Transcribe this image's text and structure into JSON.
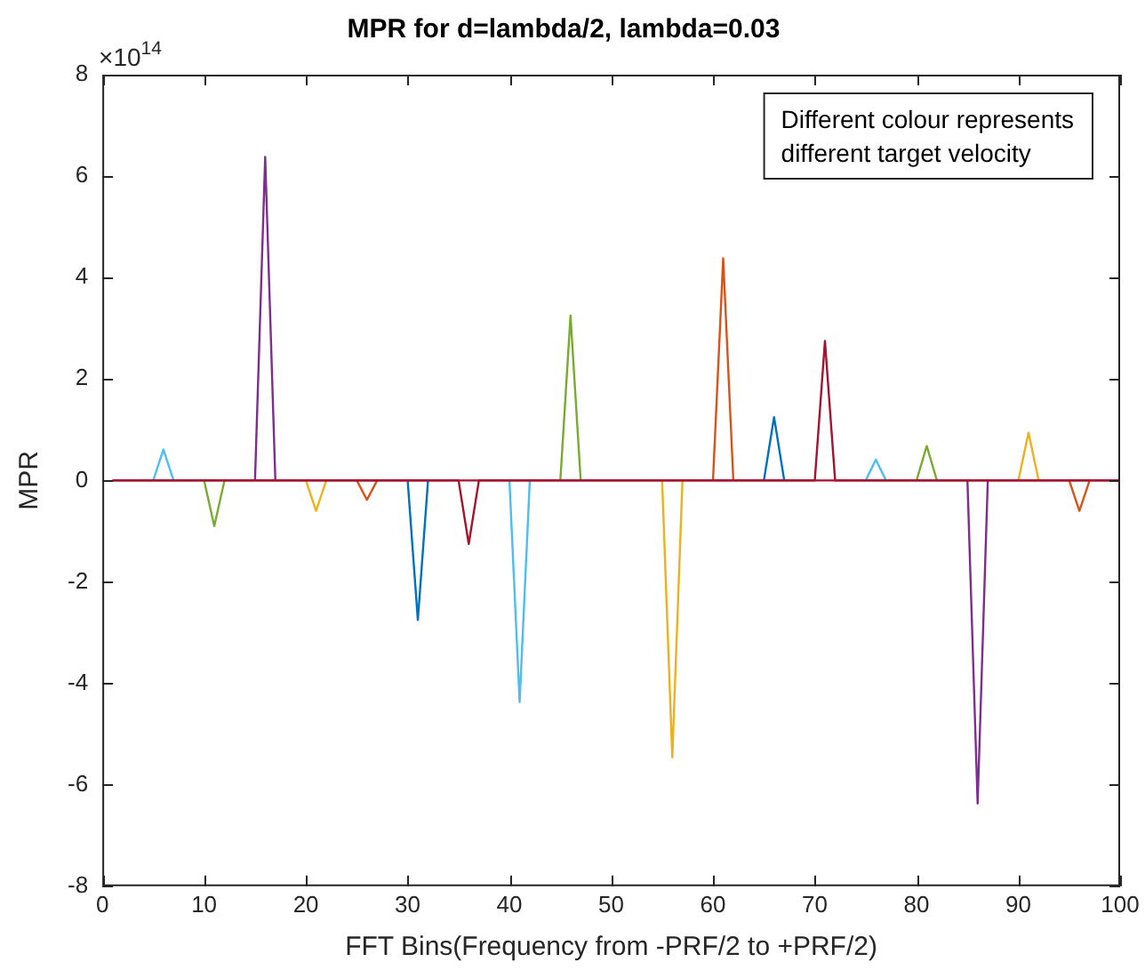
{
  "chart_data": {
    "type": "line",
    "title": "MPR for d=lambda/2, lambda=0.03",
    "xlabel": "FFT Bins(Frequency from -PRF/2 to +PRF/2)",
    "ylabel": "MPR",
    "annotations": [
      "×10$^{14}$",
      "Different colour represents different target velocity"
    ],
    "xlim": [
      0,
      100
    ],
    "xticks": [
      0,
      10,
      20,
      30,
      40,
      50,
      60,
      70,
      80,
      90,
      100
    ],
    "ylim": [
      -8,
      8
    ],
    "yticks": [
      -8,
      -6,
      -4,
      -2,
      0,
      2,
      4,
      6,
      8
    ],
    "grid": false,
    "legend": false,
    "marker": "none",
    "line_style": "solid",
    "series": [
      {
        "color": "#a2142f",
        "x": [
          1,
          70,
          71,
          72,
          100
        ],
        "values": [
          0,
          0,
          2.75,
          0,
          0
        ]
      },
      {
        "color": "#a2142f",
        "x": [
          1,
          35,
          36,
          37,
          100
        ],
        "values": [
          0,
          0,
          -1.25,
          0,
          0
        ]
      },
      {
        "color": "#4dbeee",
        "x": [
          5,
          6,
          7
        ],
        "values": [
          0,
          0.61,
          0
        ]
      },
      {
        "color": "#77ac30",
        "x": [
          10,
          11,
          12
        ],
        "values": [
          0,
          -0.9,
          0
        ]
      },
      {
        "color": "#7e2f8e",
        "x": [
          15,
          16,
          17
        ],
        "values": [
          0,
          6.38,
          0
        ]
      },
      {
        "color": "#edb120",
        "x": [
          20,
          21,
          22
        ],
        "values": [
          0,
          -0.6,
          0
        ]
      },
      {
        "color": "#d95319",
        "x": [
          25,
          26,
          27
        ],
        "values": [
          0,
          -0.38,
          0
        ]
      },
      {
        "color": "#0072bd",
        "x": [
          30,
          31,
          32
        ],
        "values": [
          0,
          -2.75,
          0
        ]
      },
      {
        "color": "#4dbeee",
        "x": [
          40,
          41,
          42
        ],
        "values": [
          0,
          -4.37,
          0
        ]
      },
      {
        "color": "#77ac30",
        "x": [
          45,
          46,
          47
        ],
        "values": [
          0,
          3.25,
          0
        ]
      },
      {
        "color": "#edb120",
        "x": [
          55,
          56,
          57
        ],
        "values": [
          0,
          -5.46,
          0
        ]
      },
      {
        "color": "#d95319",
        "x": [
          60,
          61,
          62
        ],
        "values": [
          0,
          4.38,
          0
        ]
      },
      {
        "color": "#0072bd",
        "x": [
          65,
          66,
          67
        ],
        "values": [
          0,
          1.25,
          0
        ]
      },
      {
        "color": "#4dbeee",
        "x": [
          75,
          76,
          77
        ],
        "values": [
          0,
          0.41,
          0
        ]
      },
      {
        "color": "#77ac30",
        "x": [
          80,
          81,
          82
        ],
        "values": [
          0,
          0.68,
          0
        ]
      },
      {
        "color": "#7e2f8e",
        "x": [
          85,
          86,
          87
        ],
        "values": [
          0,
          -6.37,
          0
        ]
      },
      {
        "color": "#edb120",
        "x": [
          90,
          91,
          92
        ],
        "values": [
          0,
          0.94,
          0
        ]
      },
      {
        "color": "#d95319",
        "x": [
          95,
          96,
          97
        ],
        "values": [
          0,
          -0.6,
          0
        ]
      }
    ]
  }
}
